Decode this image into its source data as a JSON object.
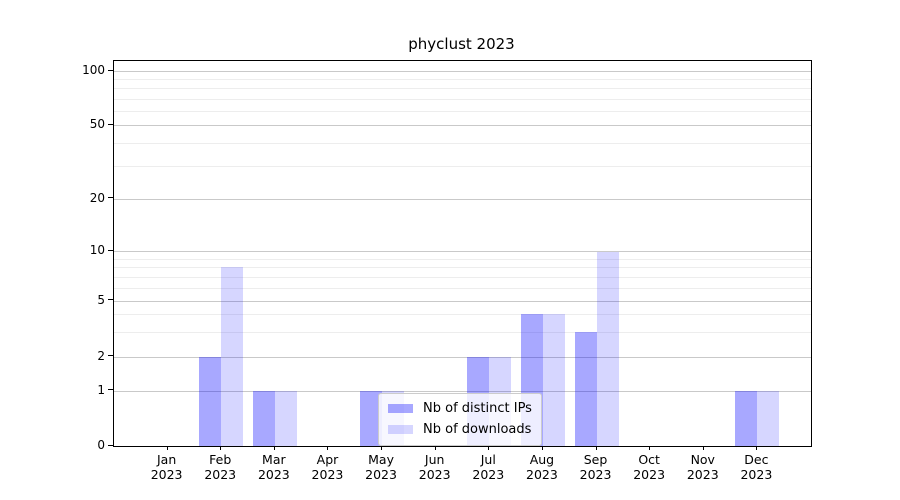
{
  "chart_data": {
    "type": "bar",
    "title": "phyclust 2023",
    "year": "2023",
    "categories": [
      "Jan",
      "Feb",
      "Mar",
      "Apr",
      "May",
      "Jun",
      "Jul",
      "Aug",
      "Sep",
      "Oct",
      "Nov",
      "Dec"
    ],
    "series": [
      {
        "name": "Nb of distinct IPs",
        "key": "distinct-ips",
        "color": "rgba(0,0,255,0.34)",
        "values": [
          0,
          2,
          1,
          0,
          1,
          0,
          2,
          4,
          3,
          0,
          0,
          1
        ]
      },
      {
        "name": "Nb of downloads",
        "key": "downloads",
        "color": "rgba(0,0,255,0.16)",
        "values": [
          0,
          8,
          1,
          0,
          1,
          0,
          2,
          4,
          10,
          0,
          0,
          1
        ]
      }
    ],
    "y_axis": {
      "scale": "log-like",
      "ticks": [
        0,
        1,
        2,
        5,
        10,
        20,
        50,
        100
      ],
      "minor_ticks": [
        3,
        4,
        6,
        7,
        8,
        9,
        30,
        40,
        60,
        70,
        80,
        90
      ]
    },
    "x_axis": {
      "label_line2": "2023"
    },
    "legend": {
      "position": "lower-center-inside"
    },
    "grid": "on",
    "colors": {
      "bar_dark_on_white": "#a8a8fc",
      "bar_light_on_white": "#d9d9fd",
      "grid_major": "#c9c9c9",
      "grid_minor": "#ededed"
    }
  }
}
